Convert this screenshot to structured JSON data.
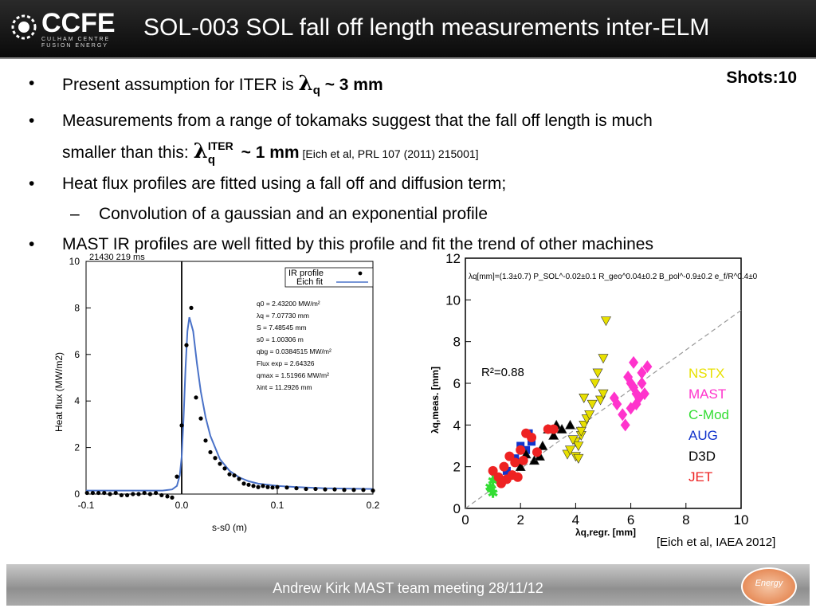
{
  "header": {
    "logo": "CCFE",
    "logo_sub": "CULHAM CENTRE FUSION ENERGY",
    "title": "SOL-003 SOL fall off length measurements inter-ELM"
  },
  "shots": "Shots:10",
  "bullets": {
    "b1_pre": "Present assumption for ITER is ",
    "lambda": "λ",
    "q": "q",
    "b1_post": " ~ 3 mm",
    "b2_line1": "Measurements from a range of tokamaks suggest that the fall off length is much",
    "b2_pre": "smaller than this: ",
    "iter": "ITER",
    "b2_val": " ~ 1 mm",
    "b2_ref": " [Eich et al, PRL 107 (2011) 215001]",
    "b3": "Heat flux profiles are fitted using a fall off and diffusion term;",
    "b3_sub": "Convolution of a gaussian and an exponential profile",
    "b4": "MAST IR profiles are well fitted by this profile and fit the trend of other machines",
    "dot": "•",
    "dash": "–"
  },
  "chart_data": [
    {
      "type": "line",
      "title": "21430 219 ms",
      "xlabel": "s-s0 (m)",
      "ylabel": "Heat flux (MW/m2)",
      "xlim": [
        -0.1,
        0.2
      ],
      "ylim": [
        0,
        10
      ],
      "x_ticks": [
        "-0.1",
        "0.0",
        "0.1",
        "0.2"
      ],
      "y_ticks": [
        "0",
        "2",
        "4",
        "6",
        "8",
        "10"
      ],
      "legend": [
        {
          "name": "IR profile",
          "marker": "dot"
        },
        {
          "name": "Eich fit",
          "marker": "line"
        }
      ],
      "legend_box_title": "",
      "fit_params": [
        "q0 = 2.43200 MW/m²",
        "λq = 7.07730 mm",
        "S = 7.48545 mm",
        "s0 = 1.00306 m",
        "qbg = 0.0384515 MW/m²",
        "Flux exp = 2.64326",
        "qmax = 1.51966 MW/m²",
        "λint = 11.2926 mm"
      ],
      "series": [
        {
          "name": "IR profile",
          "x": [
            -0.099,
            -0.093,
            -0.087,
            -0.081,
            -0.075,
            -0.069,
            -0.063,
            -0.057,
            -0.051,
            -0.045,
            -0.039,
            -0.033,
            -0.027,
            -0.021,
            -0.015,
            -0.01,
            -0.005,
            0.0,
            0.005,
            0.01,
            0.015,
            0.02,
            0.025,
            0.03,
            0.035,
            0.04,
            0.045,
            0.05,
            0.055,
            0.06,
            0.065,
            0.07,
            0.075,
            0.08,
            0.085,
            0.09,
            0.095,
            0.1,
            0.11,
            0.12,
            0.13,
            0.14,
            0.15,
            0.16,
            0.17,
            0.18,
            0.19,
            0.2
          ],
          "y": [
            0.05,
            0.05,
            0.05,
            0.05,
            0.0,
            0.05,
            -0.05,
            -0.05,
            0.0,
            0.0,
            0.05,
            0.0,
            0.05,
            -0.05,
            -0.1,
            -0.15,
            0.75,
            2.95,
            6.4,
            8.0,
            4.15,
            3.25,
            2.3,
            1.8,
            1.55,
            1.3,
            1.1,
            0.85,
            0.8,
            0.65,
            0.45,
            0.4,
            0.35,
            0.3,
            0.35,
            0.3,
            0.28,
            0.3,
            0.28,
            0.25,
            0.22,
            0.22,
            0.2,
            0.2,
            0.18,
            0.18,
            0.18,
            0.15
          ],
          "color": "#000000"
        },
        {
          "name": "Eich fit",
          "x": [
            -0.1,
            -0.02,
            -0.01,
            -0.005,
            -0.002,
            0.0,
            0.002,
            0.004,
            0.006,
            0.008,
            0.012,
            0.016,
            0.02,
            0.025,
            0.03,
            0.04,
            0.05,
            0.06,
            0.07,
            0.08,
            0.1,
            0.12,
            0.15,
            0.2
          ],
          "y": [
            0.15,
            0.15,
            0.2,
            0.35,
            0.8,
            1.6,
            3.3,
            5.4,
            7.0,
            7.6,
            7.0,
            5.6,
            4.4,
            3.3,
            2.5,
            1.5,
            1.0,
            0.72,
            0.55,
            0.45,
            0.35,
            0.3,
            0.25,
            0.22
          ],
          "color": "#4a72c8"
        }
      ]
    },
    {
      "type": "scatter",
      "title": "",
      "formula": "λq[mm]=(1.3±0.7) P_SOL^-0.02±0.1 R_geo^0.04±0.2 B_pol^-0.9±0.2 e_f/R^0.4±0.3",
      "r2": "R²=0.88",
      "xlabel": "λq,regr.  [mm]",
      "ylabel": "λq,meas.  [mm]",
      "xlim": [
        0,
        10
      ],
      "ylim": [
        0,
        12
      ],
      "x_ticks": [
        "0",
        "2",
        "4",
        "6",
        "8",
        "10"
      ],
      "y_ticks": [
        "0",
        "2",
        "4",
        "6",
        "8",
        "10",
        "12"
      ],
      "legend_position": "right",
      "series": [
        {
          "name": "NSTX",
          "color": "#e8e000",
          "x": [
            4.0,
            4.1,
            4.2,
            4.3,
            4.4,
            4.0,
            4.1,
            4.6,
            4.8,
            4.9,
            5.0,
            5.1,
            4.3,
            4.5,
            3.7,
            3.8,
            3.9,
            4.7,
            4.2,
            5.0
          ],
          "y": [
            3.2,
            3.0,
            3.5,
            4.0,
            4.3,
            2.5,
            2.4,
            5.0,
            6.5,
            5.2,
            7.2,
            9.0,
            5.3,
            4.5,
            2.6,
            2.8,
            3.3,
            6.0,
            3.7,
            5.5
          ]
        },
        {
          "name": "MAST",
          "color": "#ff33cc",
          "x": [
            6.0,
            6.2,
            6.4,
            6.1,
            6.3,
            6.5,
            5.8,
            5.9,
            6.6,
            6.0,
            5.4,
            5.5,
            6.2,
            6.4,
            5.7,
            6.1
          ],
          "y": [
            6.0,
            5.5,
            6.5,
            7.0,
            5.3,
            5.5,
            4.0,
            6.3,
            6.8,
            4.8,
            5.3,
            5.0,
            5.0,
            6.0,
            4.5,
            5.8
          ]
        },
        {
          "name": "C-Mod",
          "color": "#33dd33",
          "x": [
            0.9,
            1.0,
            1.1,
            1.0,
            0.95
          ],
          "y": [
            1.0,
            0.7,
            1.5,
            1.3,
            0.9
          ]
        },
        {
          "name": "AUG",
          "color": "#1133cc",
          "x": [
            1.5,
            1.8,
            2.0,
            2.2,
            2.3,
            1.9,
            2.4
          ],
          "y": [
            1.8,
            2.4,
            3.0,
            2.8,
            3.6,
            2.2,
            3.2
          ]
        },
        {
          "name": "D3D",
          "color": "#000000",
          "x": [
            2.5,
            2.8,
            3.0,
            3.3,
            3.5,
            2.7,
            2.2,
            2.0,
            3.8,
            3.2
          ],
          "y": [
            2.3,
            3.0,
            3.8,
            4.0,
            3.8,
            2.5,
            2.6,
            2.0,
            4.0,
            3.5
          ]
        },
        {
          "name": "JET",
          "color": "#ee2222",
          "x": [
            1.0,
            1.2,
            1.4,
            1.6,
            1.8,
            2.0,
            2.2,
            1.3,
            1.5,
            2.4,
            1.7,
            1.9,
            2.1,
            3.0,
            3.2,
            2.6
          ],
          "y": [
            1.8,
            1.5,
            2.0,
            2.5,
            2.2,
            2.8,
            3.6,
            1.2,
            1.4,
            3.4,
            1.6,
            1.5,
            2.3,
            3.8,
            3.8,
            2.7
          ]
        }
      ]
    }
  ],
  "eich_ref": "[Eich et al, IAEA 2012]",
  "footer": {
    "text": "Andrew Kirk MAST team meeting 28/11/12",
    "badge": "Energy"
  }
}
